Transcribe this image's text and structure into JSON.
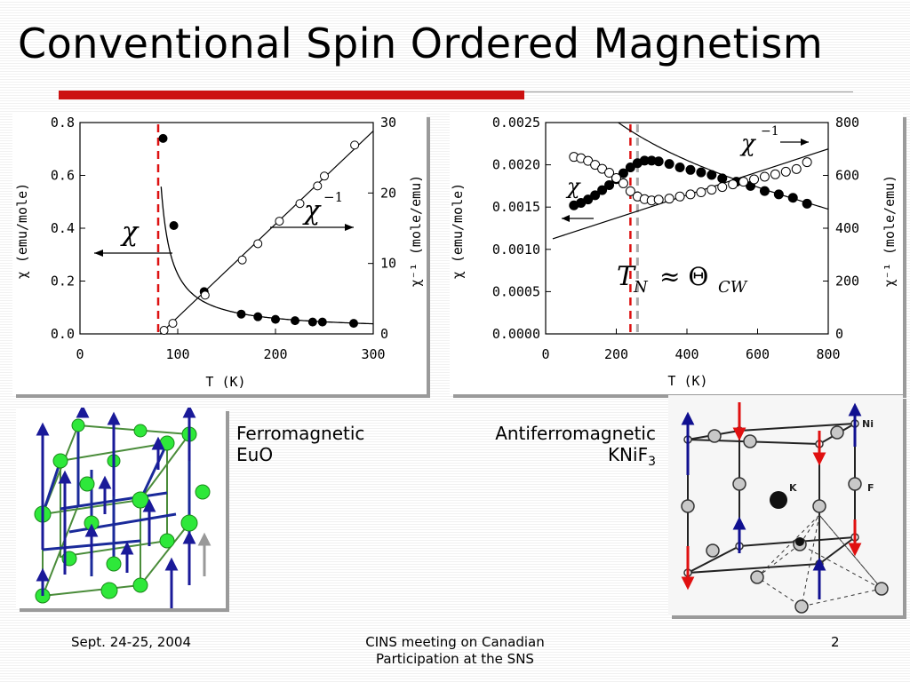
{
  "slide": {
    "title": "Conventional Spin Ordered Magnetism",
    "caption_left_1": "Ferromagnetic",
    "caption_left_2": "EuO",
    "caption_right_1": "Antiferromagnetic",
    "caption_right_2": "KNiF",
    "caption_right_sub": "3",
    "footer_left": "Sept. 24-25, 2004",
    "footer_center_1": "CINS meeting on Canadian",
    "footer_center_2": "Participation at the SNS",
    "footer_right": "2",
    "accent_color": "#cc1111"
  },
  "chart_data": [
    {
      "type": "scatter",
      "xlabel": "T (K)",
      "ylabel_left": "χ (emu/mole)",
      "ylabel_right": "χ⁻¹ (mole/emu)",
      "xlim": [
        0,
        300
      ],
      "ylim_left": [
        0,
        0.8
      ],
      "ylim_right": [
        0,
        30
      ],
      "x_ticks": [
        "0",
        "100",
        "200",
        "300"
      ],
      "y_ticks_left": [
        "0.0",
        "0.2",
        "0.4",
        "0.6",
        "0.8"
      ],
      "y_ticks_right": [
        "0",
        "10",
        "20",
        "30"
      ],
      "annotation_chi": "χ",
      "annotation_chi_inv": "χ",
      "annotation_chi_inv_sup": "−1",
      "transition_x": 80,
      "series": [
        {
          "axis": "left",
          "marker": "filled",
          "x": [
            85,
            96,
            127,
            165,
            182,
            200,
            220,
            238,
            248,
            280
          ],
          "y": [
            0.74,
            0.41,
            0.16,
            0.075,
            0.065,
            0.055,
            0.05,
            0.045,
            0.045,
            0.04
          ]
        },
        {
          "axis": "right",
          "marker": "open",
          "x": [
            86,
            95,
            128,
            166,
            182,
            204,
            225,
            243,
            250,
            281
          ],
          "y": [
            0.5,
            1.5,
            5.5,
            10.5,
            12.8,
            16,
            18.5,
            21,
            22.4,
            26.8
          ]
        }
      ]
    },
    {
      "type": "scatter",
      "xlabel": "T (K)",
      "ylabel_left": "χ (emu/mole)",
      "ylabel_right": "χ⁻¹ (mole/emu)",
      "xlim": [
        0,
        800
      ],
      "ylim_left": [
        0,
        0.0025
      ],
      "ylim_right": [
        0,
        800
      ],
      "x_ticks": [
        "0",
        "200",
        "400",
        "600",
        "800"
      ],
      "y_ticks_left": [
        "0.0000",
        "0.0005",
        "0.0010",
        "0.0015",
        "0.0020",
        "0.0025"
      ],
      "y_ticks_right": [
        "0",
        "200",
        "400",
        "600",
        "800"
      ],
      "annotation_chi": "χ",
      "annotation_chi_inv": "χ",
      "annotation_chi_inv_sup": "−1",
      "annotation_tn": "T",
      "annotation_tn_sub": "N",
      "annotation_approx": "≈ Θ",
      "annotation_cw_sub": "CW",
      "transition_x": 240,
      "tcw_x": 260,
      "series": [
        {
          "axis": "left",
          "marker": "filled",
          "x": [
            80,
            100,
            120,
            140,
            160,
            180,
            200,
            220,
            240,
            260,
            280,
            300,
            320,
            350,
            380,
            410,
            440,
            470,
            500,
            540,
            580,
            620,
            660,
            700,
            740
          ],
          "y": [
            0.00152,
            0.00155,
            0.00159,
            0.00164,
            0.0017,
            0.00176,
            0.00183,
            0.0019,
            0.00197,
            0.00202,
            0.00205,
            0.00205,
            0.00204,
            0.00201,
            0.00197,
            0.00194,
            0.00191,
            0.00188,
            0.00184,
            0.0018,
            0.00175,
            0.00169,
            0.00165,
            0.00161,
            0.00154
          ]
        },
        {
          "axis": "right",
          "marker": "open",
          "x": [
            80,
            100,
            120,
            140,
            160,
            180,
            200,
            220,
            240,
            260,
            280,
            300,
            320,
            350,
            380,
            410,
            440,
            470,
            500,
            530,
            560,
            590,
            620,
            650,
            680,
            710,
            740
          ],
          "y": [
            670,
            665,
            655,
            640,
            625,
            610,
            590,
            570,
            540,
            520,
            510,
            505,
            508,
            512,
            520,
            528,
            536,
            546,
            556,
            566,
            576,
            585,
            595,
            604,
            614,
            624,
            650
          ]
        }
      ]
    }
  ]
}
